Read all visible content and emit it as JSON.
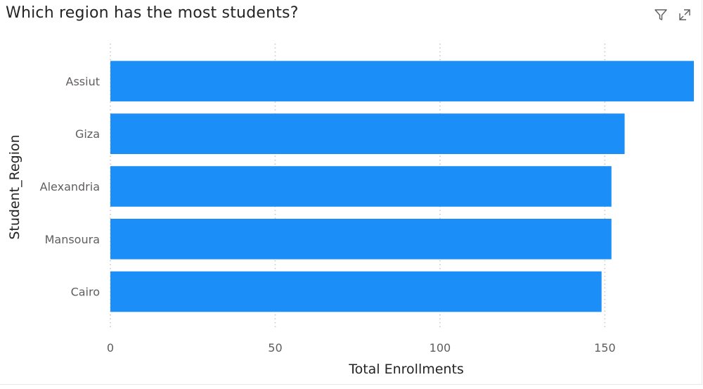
{
  "header": {
    "title": "Which region has the most students?",
    "icons": [
      "filter-icon",
      "focus-mode-icon"
    ]
  },
  "chart_data": {
    "type": "bar",
    "orientation": "horizontal",
    "title": "Which region has the most students?",
    "xlabel": "Total Enrollments",
    "ylabel": "Student_Region",
    "categories": [
      "Assiut",
      "Giza",
      "Alexandria",
      "Mansoura",
      "Cairo"
    ],
    "values": [
      177,
      156,
      152,
      152,
      149
    ],
    "xlim": [
      0,
      177
    ],
    "xticks": [
      0,
      50,
      100,
      150
    ],
    "grid": true,
    "bar_color": "#1B8FF7",
    "grid_color": "#c8c6c4"
  }
}
